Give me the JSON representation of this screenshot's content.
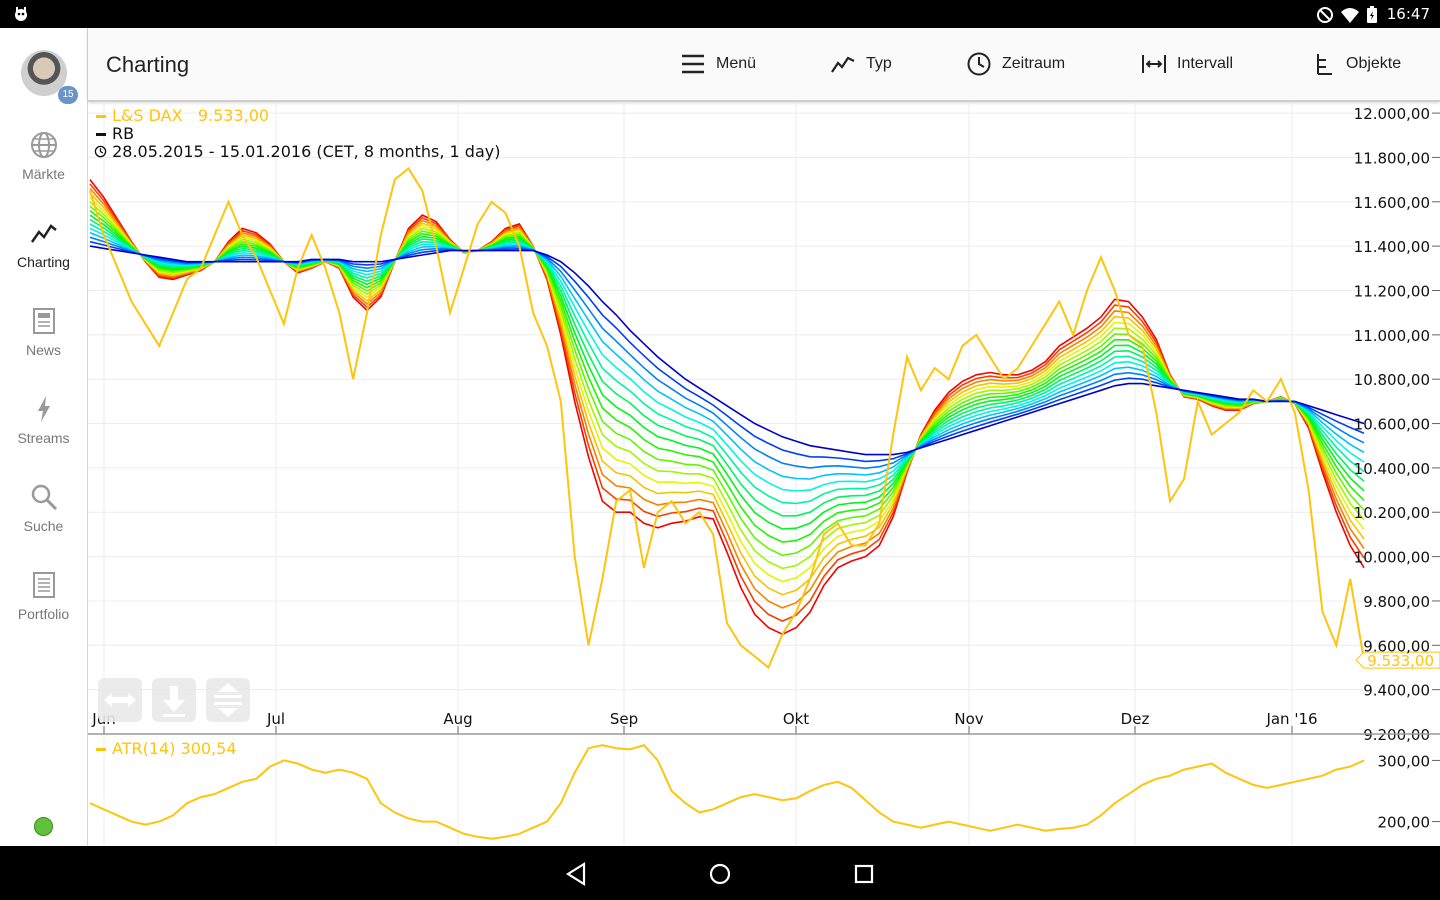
{
  "status_bar": {
    "time": "16:47"
  },
  "sidebar": {
    "badge": "15",
    "items": [
      {
        "label": "Märkte",
        "icon": "globe-icon",
        "active": false
      },
      {
        "label": "Charting",
        "icon": "chart-line-icon",
        "active": true
      },
      {
        "label": "News",
        "icon": "newspaper-icon",
        "active": false
      },
      {
        "label": "Streams",
        "icon": "lightning-icon",
        "active": false
      },
      {
        "label": "Suche",
        "icon": "search-icon",
        "active": false
      },
      {
        "label": "Portfolio",
        "icon": "list-icon",
        "active": false
      }
    ]
  },
  "toolbar": {
    "title": "Charting",
    "buttons": [
      {
        "label": "Menü",
        "icon": "menu-icon"
      },
      {
        "label": "Typ",
        "icon": "chart-type-icon"
      },
      {
        "label": "Zeitraum",
        "icon": "clock-icon"
      },
      {
        "label": "Intervall",
        "icon": "interval-icon"
      },
      {
        "label": "Objekte",
        "icon": "objects-icon"
      }
    ]
  },
  "legend": {
    "instrument": "L&S DAX",
    "last_value": "9.533,00",
    "indicator": "RB",
    "period": "28.05.2015 - 15.01.2016 (CET, 8 months, 1 day)"
  },
  "atr_legend": {
    "label": "ATR(14)",
    "value": "300,54"
  },
  "colors": {
    "price": "#ffc40d",
    "ribbon_fast": "#e00000",
    "ribbon_slow": "#0018d0"
  },
  "chart_data": [
    {
      "type": "line",
      "x_labels": [
        "Jun",
        "Jul",
        "Aug",
        "Sep",
        "Okt",
        "Nov",
        "Dez",
        "Jan '16"
      ],
      "y_ticks": [
        "9.200,00",
        "9.400,00",
        "9.600,00",
        "9.800,00",
        "10.000,00",
        "10.200,00",
        "10.400,00",
        "10.600,00",
        "10.800,00",
        "11.000,00",
        "11.200,00",
        "11.400,00",
        "11.600,00",
        "11.800,00",
        "12.000,00"
      ],
      "ylim": [
        9200,
        12050
      ],
      "grid": true,
      "last_label": "9.533,00",
      "series": [
        {
          "name": "L&S DAX",
          "values": [
            11650,
            11450,
            11300,
            11150,
            11050,
            10950,
            11100,
            11250,
            11300,
            11450,
            11600,
            11450,
            11350,
            11200,
            11050,
            11300,
            11450,
            11300,
            11100,
            10800,
            11100,
            11450,
            11700,
            11750,
            11650,
            11400,
            11100,
            11300,
            11500,
            11600,
            11550,
            11400,
            11100,
            10950,
            10700,
            10000,
            9600,
            9900,
            10250,
            10300,
            9950,
            10200,
            10250,
            10150,
            10200,
            10100,
            9700,
            9600,
            9550,
            9500,
            9650,
            9750,
            9900,
            10100,
            10150,
            10050,
            10050,
            10150,
            10550,
            10900,
            10750,
            10850,
            10800,
            10950,
            11000,
            10900,
            10800,
            10850,
            10950,
            11050,
            11150,
            11000,
            11200,
            11350,
            11200,
            11000,
            10950,
            10650,
            10250,
            10350,
            10700,
            10550,
            10600,
            10650,
            10750,
            10700,
            10800,
            10650,
            10300,
            9750,
            9600,
            9900,
            9533
          ]
        },
        {
          "name": "RB fast",
          "values": [
            11700,
            11620,
            11520,
            11420,
            11330,
            11260,
            11250,
            11270,
            11290,
            11330,
            11420,
            11480,
            11460,
            11410,
            11330,
            11280,
            11300,
            11330,
            11300,
            11170,
            11110,
            11170,
            11330,
            11480,
            11540,
            11510,
            11430,
            11370,
            11380,
            11420,
            11480,
            11500,
            11400,
            11250,
            11000,
            10700,
            10450,
            10250,
            10200,
            10200,
            10150,
            10130,
            10150,
            10160,
            10180,
            10170,
            10020,
            9860,
            9740,
            9680,
            9650,
            9680,
            9750,
            9870,
            9950,
            9980,
            10000,
            10050,
            10180,
            10380,
            10550,
            10660,
            10740,
            10790,
            10820,
            10830,
            10820,
            10820,
            10840,
            10880,
            10950,
            10990,
            11030,
            11080,
            11160,
            11150,
            11080,
            10980,
            10820,
            10720,
            10710,
            10680,
            10660,
            10660,
            10690,
            10700,
            10720,
            10690,
            10580,
            10380,
            10200,
            10050,
            9950
          ]
        },
        {
          "name": "RB slow",
          "values": [
            11400,
            11390,
            11380,
            11370,
            11360,
            11350,
            11340,
            11330,
            11330,
            11330,
            11330,
            11330,
            11330,
            11330,
            11330,
            11330,
            11340,
            11340,
            11340,
            11330,
            11330,
            11330,
            11340,
            11350,
            11360,
            11370,
            11380,
            11380,
            11380,
            11380,
            11380,
            11380,
            11380,
            11360,
            11330,
            11280,
            11220,
            11150,
            11090,
            11020,
            10960,
            10900,
            10850,
            10800,
            10760,
            10720,
            10680,
            10640,
            10600,
            10570,
            10540,
            10520,
            10500,
            10490,
            10480,
            10470,
            10460,
            10460,
            10460,
            10470,
            10490,
            10510,
            10530,
            10550,
            10570,
            10590,
            10610,
            10630,
            10650,
            10670,
            10690,
            10710,
            10730,
            10750,
            10770,
            10780,
            10780,
            10770,
            10760,
            10750,
            10740,
            10730,
            10720,
            10710,
            10710,
            10700,
            10700,
            10700,
            10680,
            10660,
            10640,
            10620,
            10600
          ]
        }
      ]
    },
    {
      "type": "line",
      "y_ticks": [
        "200,00",
        "300,00"
      ],
      "ylim": [
        160,
        340
      ],
      "series": [
        {
          "name": "ATR(14)",
          "values": [
            230,
            220,
            210,
            200,
            195,
            200,
            210,
            230,
            240,
            245,
            255,
            265,
            270,
            290,
            300,
            295,
            285,
            280,
            285,
            280,
            270,
            230,
            215,
            205,
            200,
            200,
            190,
            180,
            175,
            172,
            175,
            180,
            190,
            200,
            230,
            280,
            320,
            325,
            320,
            318,
            325,
            300,
            250,
            230,
            215,
            220,
            230,
            240,
            245,
            240,
            235,
            238,
            250,
            260,
            265,
            255,
            235,
            215,
            200,
            195,
            190,
            195,
            200,
            195,
            190,
            185,
            190,
            195,
            190,
            185,
            188,
            190,
            195,
            210,
            230,
            245,
            260,
            270,
            275,
            285,
            290,
            295,
            280,
            270,
            260,
            255,
            260,
            265,
            270,
            275,
            285,
            290,
            300
          ]
        }
      ]
    }
  ]
}
